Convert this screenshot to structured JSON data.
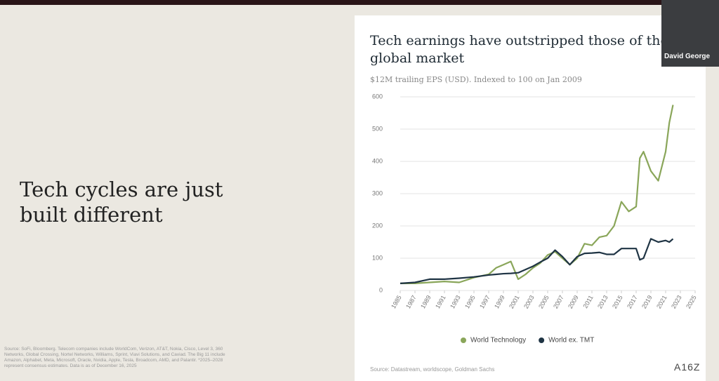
{
  "slide": {
    "heading": "Tech cycles are just built different",
    "footnote": "Source: SoFi, Bloomberg. Telecom companies include WorldCom, Verizon, AT&T, Nokia, Cisco, Level 3, 360 Networks, Global Crossing, Nortel Networks, Williams, Sprint, Viavi Solutions, and Caviad. The Big 11 include Amazon, Alphabet, Meta, Microsoft, Oracle, Nvidia, Apple, Tesla, Broadcom, AMD, and Palantir. *2025–2028 represent consensus estimates. Data is as of December 16, 2025",
    "logo": "A16Z"
  },
  "video": {
    "participant": "David George"
  },
  "chart_data": {
    "type": "line",
    "title": "Tech earnings have outstripped those of the global market",
    "subtitle": "$12M trailing EPS (USD). Indexed to 100 on Jan 2009",
    "source": "Source: Datastream, worldscope, Goldman Sachs",
    "x": [
      1985,
      1987,
      1989,
      1991,
      1993,
      1995,
      1997,
      1998,
      1999,
      2000,
      2001,
      2002,
      2003,
      2004,
      2005,
      2006,
      2007,
      2008,
      2009,
      2010,
      2011,
      2012,
      2013,
      2014,
      2015,
      2016,
      2017,
      2017.5,
      2018,
      2019,
      2020,
      2021,
      2021.5,
      2022
    ],
    "series": [
      {
        "name": "World Technology",
        "color": "#8aa65a",
        "values": [
          22,
          22,
          25,
          28,
          25,
          40,
          50,
          70,
          80,
          90,
          35,
          50,
          70,
          85,
          110,
          120,
          100,
          80,
          100,
          145,
          140,
          165,
          170,
          200,
          275,
          245,
          260,
          410,
          430,
          370,
          340,
          430,
          520,
          575
        ]
      },
      {
        "name": "World ex. TMT",
        "color": "#1f3444",
        "values": [
          22,
          25,
          35,
          35,
          38,
          42,
          48,
          50,
          52,
          53,
          55,
          65,
          75,
          88,
          100,
          125,
          105,
          80,
          105,
          115,
          116,
          118,
          112,
          112,
          130,
          130,
          130,
          95,
          100,
          160,
          150,
          155,
          150,
          160
        ]
      }
    ],
    "xlim": [
      1985,
      2025
    ],
    "xticks": [
      1985,
      1987,
      1989,
      1991,
      1993,
      1995,
      1997,
      1999,
      2001,
      2003,
      2005,
      2007,
      2009,
      2011,
      2013,
      2015,
      2017,
      2019,
      2021,
      2023,
      2025
    ],
    "ylim": [
      0,
      600
    ],
    "yticks": [
      0,
      100,
      200,
      300,
      400,
      500,
      600
    ],
    "grid": true,
    "legend": "bottom"
  }
}
